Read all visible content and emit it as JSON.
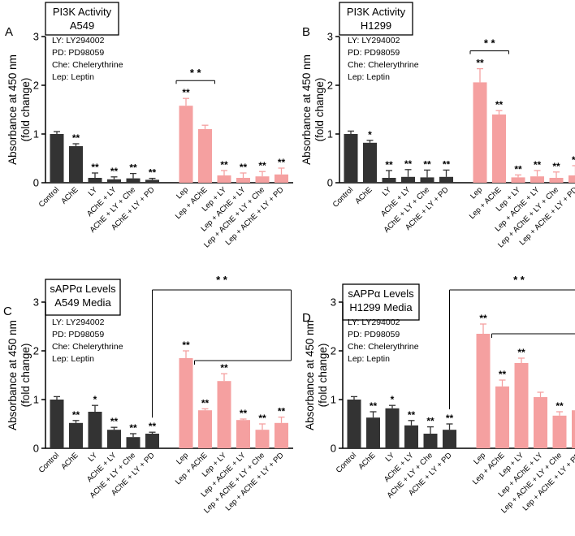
{
  "figure": {
    "ylabel_line1": "Absorbance at 450 nm",
    "ylabel_line2": "(fold change)",
    "legend_lines": [
      "LY: LY294002",
      "PD: PD98059",
      "Che: Chelerythrine",
      "Lep: Leptin"
    ],
    "colors": {
      "dark": "#333333",
      "pink": "#f5a0a0"
    }
  },
  "chart_data": [
    {
      "type": "bar",
      "panel": "A",
      "title_lines": [
        "PI3K Activity",
        "A549"
      ],
      "ylabel": "Absorbance at 450 nm (fold change)",
      "ylim": [
        0,
        3
      ],
      "yticks": [
        0,
        1,
        2,
        3
      ],
      "categories": [
        "Control",
        "AChE",
        "LY",
        "AChE + LY",
        "AChE + LY + Che",
        "AChE + LY + PD",
        "Lep",
        "Lep + AChE",
        "Lep + LY",
        "Lep + AChE + LY",
        "Lep + AChE + LY + Che",
        "Lep + AChE + LY + PD"
      ],
      "values": [
        1.0,
        0.75,
        0.1,
        0.07,
        0.09,
        0.06,
        1.58,
        1.1,
        0.15,
        0.1,
        0.13,
        0.17
      ],
      "errors": [
        0.05,
        0.05,
        0.1,
        0.05,
        0.1,
        0.03,
        0.15,
        0.08,
        0.1,
        0.1,
        0.1,
        0.13
      ],
      "colors": [
        "dark",
        "dark",
        "dark",
        "dark",
        "dark",
        "dark",
        "pink",
        "pink",
        "pink",
        "pink",
        "pink",
        "pink"
      ],
      "significance": [
        "",
        "**",
        "**",
        "**",
        "**",
        "**",
        "**",
        "",
        "**",
        "**",
        "**",
        "**"
      ],
      "bracket": {
        "label": "* *",
        "type": "line",
        "from": 6,
        "to": 7
      }
    },
    {
      "type": "bar",
      "panel": "B",
      "title_lines": [
        "PI3K Activity",
        "H1299"
      ],
      "ylabel": "Absorbance at 450 nm (fold change)",
      "ylim": [
        0,
        3
      ],
      "yticks": [
        0,
        1,
        2,
        3
      ],
      "categories": [
        "Control",
        "AChE",
        "LY",
        "AChE + LY",
        "AChE + LY + Che",
        "AChE + LY + PD",
        "Lep",
        "Lep + AChE",
        "Lep + LY",
        "Lep + AChE + LY",
        "Lep + AChE + LY + Che",
        "Lep + AChE + LY + PD"
      ],
      "values": [
        1.0,
        0.82,
        0.1,
        0.12,
        0.11,
        0.12,
        2.06,
        1.4,
        0.11,
        0.13,
        0.1,
        0.15
      ],
      "errors": [
        0.06,
        0.05,
        0.15,
        0.15,
        0.15,
        0.14,
        0.28,
        0.08,
        0.05,
        0.12,
        0.12,
        0.2
      ],
      "colors": [
        "dark",
        "dark",
        "dark",
        "dark",
        "dark",
        "dark",
        "pink",
        "pink",
        "pink",
        "pink",
        "pink",
        "pink"
      ],
      "significance": [
        "",
        "*",
        "**",
        "**",
        "**",
        "**",
        "**",
        "**",
        "**",
        "**",
        "**",
        "**"
      ],
      "bracket": {
        "label": "* *",
        "type": "line",
        "from": 6,
        "to": 7
      }
    },
    {
      "type": "bar",
      "panel": "C",
      "title_lines": [
        "sAPPα Levels",
        "A549 Media"
      ],
      "ylabel": "Absorbance at 450 nm (fold change)",
      "ylim": [
        0,
        3
      ],
      "yticks": [
        0,
        1,
        2,
        3
      ],
      "categories": [
        "Control",
        "AChE",
        "LY",
        "AChE + LY",
        "AChE + LY + Che",
        "AChE + LY + PD",
        "Lep",
        "Lep + AChE",
        "Lep + LY",
        "Lep + AChE + LY",
        "Lep + AChE + LY + Che",
        "Lep + AChE + LY + PD"
      ],
      "values": [
        1.0,
        0.52,
        0.75,
        0.38,
        0.23,
        0.3,
        1.85,
        0.78,
        1.38,
        0.58,
        0.38,
        0.52
      ],
      "errors": [
        0.06,
        0.05,
        0.13,
        0.05,
        0.07,
        0.03,
        0.15,
        0.03,
        0.15,
        0.02,
        0.12,
        0.12
      ],
      "colors": [
        "dark",
        "dark",
        "dark",
        "dark",
        "dark",
        "dark",
        "pink",
        "pink",
        "pink",
        "pink",
        "pink",
        "pink"
      ],
      "significance": [
        "",
        "**",
        "*",
        "**",
        "**",
        "**",
        "**",
        "**",
        "**",
        "**",
        "**",
        "**"
      ],
      "bracket": {
        "label": "* *",
        "type": "fork",
        "from": 5,
        "to": 11,
        "ref": 6,
        "refTo": [
          7,
          11
        ]
      }
    },
    {
      "type": "bar",
      "panel": "D",
      "title_lines": [
        "sAPPα Levels",
        "H1299 Media"
      ],
      "ylabel": "Absorbance at 450 nm (fold change)",
      "ylim": [
        0,
        3
      ],
      "yticks": [
        0,
        1,
        2,
        3
      ],
      "categories": [
        "Control",
        "AChE",
        "LY",
        "AChE + LY",
        "AChE + LY + Che",
        "AChE + LY + PD",
        "Lep",
        "Lep + AChE",
        "Lep + LY",
        "Lep + AChE + LY",
        "Lep + AChE + LY + Che",
        "Lep + AChE + LY + PD"
      ],
      "values": [
        1.0,
        0.63,
        0.82,
        0.47,
        0.3,
        0.38,
        2.35,
        1.27,
        1.75,
        1.05,
        0.67,
        0.78
      ],
      "errors": [
        0.06,
        0.12,
        0.06,
        0.1,
        0.14,
        0.12,
        0.2,
        0.13,
        0.1,
        0.1,
        0.08,
        0.15
      ],
      "colors": [
        "dark",
        "dark",
        "dark",
        "dark",
        "dark",
        "dark",
        "pink",
        "pink",
        "pink",
        "pink",
        "pink",
        "pink"
      ],
      "significance": [
        "",
        "**",
        "*",
        "**",
        "**",
        "**",
        "**",
        "**",
        "**",
        "",
        "**",
        "**"
      ],
      "bracket": {
        "label": "* *",
        "type": "fork",
        "from": 5,
        "to": 11,
        "ref": 6,
        "refTo": [
          7,
          11
        ]
      }
    }
  ]
}
